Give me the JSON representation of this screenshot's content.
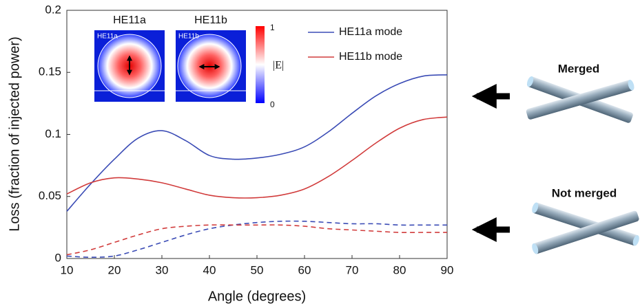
{
  "chart_data": {
    "type": "line",
    "x_label": "Angle (degrees)",
    "y_label": "Loss (fraction of injected power)",
    "xlim": [
      10,
      90
    ],
    "xticks": [
      10,
      20,
      30,
      40,
      50,
      60,
      70,
      80,
      90
    ],
    "ylim": [
      0,
      0.2
    ],
    "yticks": [
      0,
      0.05,
      0.1,
      0.15,
      0.2
    ],
    "x": [
      10,
      15,
      20,
      25,
      30,
      35,
      40,
      45,
      50,
      55,
      60,
      65,
      70,
      75,
      80,
      85,
      90
    ],
    "series": [
      {
        "name": "HE11a mode",
        "color": "#3a4bb5",
        "dashed": false,
        "values": [
          0.038,
          0.06,
          0.08,
          0.097,
          0.103,
          0.095,
          0.083,
          0.08,
          0.081,
          0.084,
          0.09,
          0.102,
          0.117,
          0.131,
          0.141,
          0.147,
          0.148
        ]
      },
      {
        "name": "HE11b mode",
        "color": "#d13b3b",
        "dashed": false,
        "values": [
          0.052,
          0.061,
          0.065,
          0.064,
          0.061,
          0.056,
          0.051,
          0.049,
          0.049,
          0.051,
          0.056,
          0.066,
          0.079,
          0.093,
          0.105,
          0.112,
          0.114
        ]
      },
      {
        "color": "#3a4bb5",
        "dashed": true,
        "values": [
          0.002,
          0.001,
          0.002,
          0.007,
          0.013,
          0.019,
          0.024,
          0.027,
          0.029,
          0.03,
          0.03,
          0.029,
          0.028,
          0.028,
          0.027,
          0.027,
          0.027
        ]
      },
      {
        "color": "#d13b3b",
        "dashed": true,
        "values": [
          0.003,
          0.007,
          0.013,
          0.019,
          0.024,
          0.026,
          0.027,
          0.027,
          0.027,
          0.027,
          0.026,
          0.024,
          0.023,
          0.022,
          0.021,
          0.021,
          0.021
        ]
      }
    ],
    "insets": [
      {
        "label": "HE11a"
      },
      {
        "label": "HE11b"
      }
    ],
    "colorbar": {
      "max_label": "1",
      "min_label": "0",
      "label": "|E|"
    }
  },
  "illustrations": {
    "merged": "Merged",
    "not_merged": "Not merged"
  }
}
